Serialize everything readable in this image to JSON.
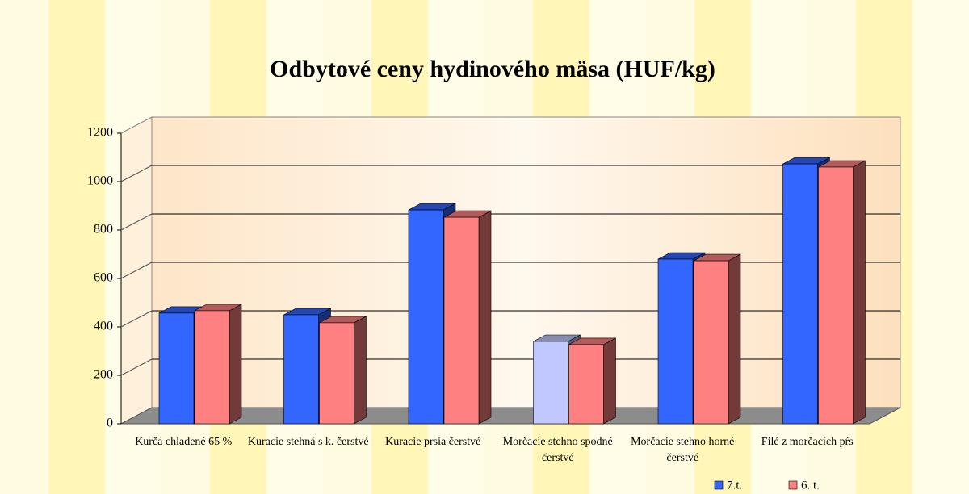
{
  "chart_data": {
    "type": "bar3d",
    "title": "Odbytové ceny hydinového mäsa (HUF/kg)",
    "categories": [
      "Kurča chladené 65 %",
      "Kuracie stehná s k. čerstvé",
      "Kuracie prsia čerstvé",
      "Morčacie stehno spodné čerstvé",
      "Morčacie stehno horné čerstvé",
      "Filé z morčacích pŕs"
    ],
    "series": [
      {
        "name": "7.t.",
        "color": "#3366ff",
        "colors": [
          "#3366ff",
          "#3366ff",
          "#3366ff",
          "#c0c8ff",
          "#3366ff",
          "#3366ff"
        ],
        "values": [
          457,
          450,
          883,
          340,
          680,
          1073
        ]
      },
      {
        "name": "6. t.",
        "color": "#ff8080",
        "values": [
          467,
          417,
          853,
          327,
          673,
          1060
        ]
      }
    ],
    "ylim": [
      0,
      1200
    ],
    "yticks": [
      0,
      200,
      400,
      600,
      800,
      1000,
      1200
    ],
    "grid": true,
    "legend": "bottom-right"
  }
}
